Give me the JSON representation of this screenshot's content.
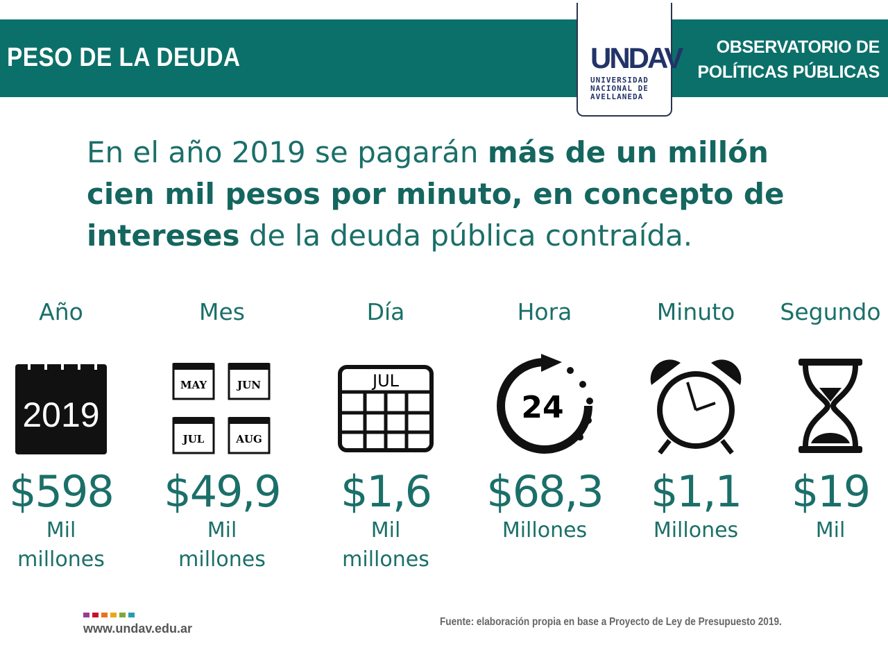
{
  "header": {
    "title": "PESO DE LA DEUDA",
    "observatory_line1": "OBSERVATORIO DE",
    "observatory_line2": "POLÍTICAS PÚBLICAS",
    "logo_mark": "UNDAV",
    "logo_line1": "UNIVERSIDAD",
    "logo_line2": "NACIONAL DE",
    "logo_line3": "AVELLANEDA"
  },
  "headline": {
    "part1": "En el año 2019 se pagarán ",
    "bold": "más de un millón cien mil pesos por minuto, en concepto de intereses",
    "part2": " de la deuda pública contraída."
  },
  "items": [
    {
      "label": "Año",
      "icon_text": "2019",
      "value": "$598",
      "unit1": "Mil",
      "unit2": "millones"
    },
    {
      "label": "Mes",
      "icon_text": "MAY JUN JUL AUG",
      "value": "$49,9",
      "unit1": "Mil",
      "unit2": "millones"
    },
    {
      "label": "Día",
      "icon_text": "JUL",
      "value": "$1,6",
      "unit1": "Mil",
      "unit2": "millones"
    },
    {
      "label": "Hora",
      "icon_text": "24",
      "value": "$68,3",
      "unit1": "Millones",
      "unit2": ""
    },
    {
      "label": "Minuto",
      "value": "$1,1",
      "unit1": "Millones",
      "unit2": ""
    },
    {
      "label": "Segundo",
      "value": "$19",
      "unit1": "Mil",
      "unit2": ""
    }
  ],
  "footer": {
    "url": "www.undav.edu.ar",
    "source": "Fuente: elaboración propia en base a Proyecto de Ley de Presupuesto 2019.",
    "colors": [
      "#9b3e8f",
      "#c8102e",
      "#e8731c",
      "#e9a81a",
      "#7fa83a",
      "#2a9bb5"
    ]
  },
  "colors": {
    "teal": "#0b7069",
    "navy": "#223368"
  }
}
